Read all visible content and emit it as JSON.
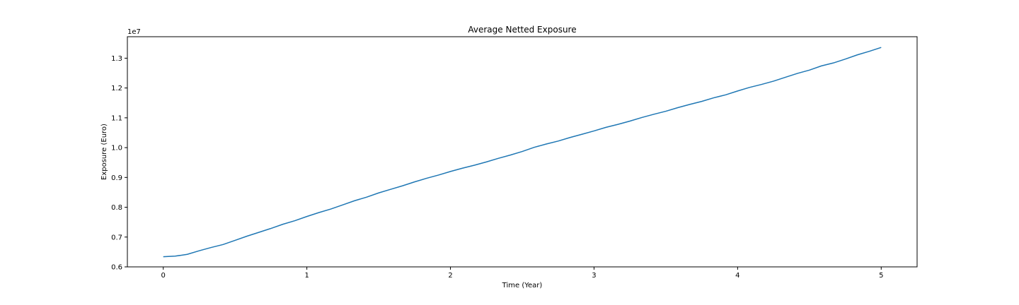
{
  "chart_data": {
    "type": "line",
    "title": "Average Netted Exposure",
    "xlabel": "Time (Year)",
    "ylabel": "Exposure (Euro)",
    "y_offset_text": "1e7",
    "xlim": [
      -0.25,
      5.25
    ],
    "ylim": [
      0.6,
      1.372
    ],
    "x_ticks": [
      0,
      1,
      2,
      3,
      4,
      5
    ],
    "x_tick_labels": [
      "0",
      "1",
      "2",
      "3",
      "4",
      "5"
    ],
    "y_ticks": [
      0.6,
      0.7,
      0.8,
      0.9,
      1.0,
      1.1,
      1.2,
      1.3
    ],
    "y_tick_labels": [
      "0.6",
      "0.7",
      "0.8",
      "0.9",
      "1.0",
      "1.1",
      "1.2",
      "1.3"
    ],
    "grid": false,
    "line_color": "#1f77b4",
    "series": [
      {
        "x": [
          0,
          0.083,
          0.167,
          0.25,
          0.333,
          0.417,
          0.5,
          0.583,
          0.667,
          0.75,
          0.833,
          0.917,
          1.0,
          1.083,
          1.167,
          1.25,
          1.333,
          1.417,
          1.5,
          1.583,
          1.667,
          1.75,
          1.833,
          1.917,
          2.0,
          2.083,
          2.167,
          2.25,
          2.333,
          2.417,
          2.5,
          2.583,
          2.667,
          2.75,
          2.833,
          2.917,
          3.0,
          3.083,
          3.167,
          3.25,
          3.333,
          3.417,
          3.5,
          3.583,
          3.667,
          3.75,
          3.833,
          3.917,
          4.0,
          4.083,
          4.167,
          4.25,
          4.333,
          4.417,
          4.5,
          4.583,
          4.667,
          4.75,
          4.833,
          4.917,
          5.0
        ],
        "y": [
          0.634,
          0.636,
          0.642,
          0.654,
          0.665,
          0.675,
          0.689,
          0.703,
          0.716,
          0.729,
          0.743,
          0.755,
          0.769,
          0.782,
          0.794,
          0.808,
          0.822,
          0.834,
          0.848,
          0.86,
          0.872,
          0.885,
          0.897,
          0.908,
          0.92,
          0.931,
          0.941,
          0.952,
          0.964,
          0.975,
          0.987,
          1.001,
          1.012,
          1.022,
          1.034,
          1.045,
          1.056,
          1.068,
          1.078,
          1.089,
          1.101,
          1.112,
          1.122,
          1.134,
          1.145,
          1.155,
          1.167,
          1.177,
          1.19,
          1.202,
          1.212,
          1.223,
          1.236,
          1.249,
          1.26,
          1.274,
          1.284,
          1.297,
          1.311,
          1.323,
          1.336
        ]
      }
    ]
  }
}
